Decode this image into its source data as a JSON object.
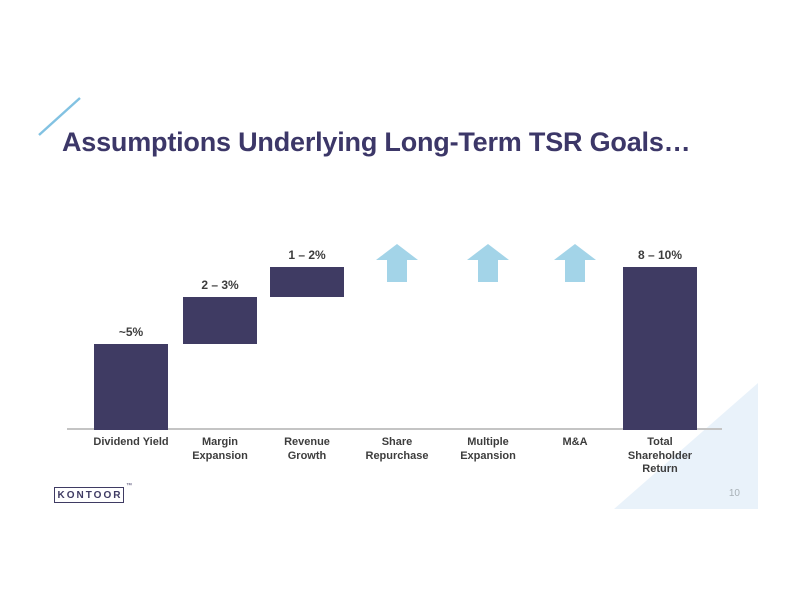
{
  "slide": {
    "title": "Assumptions Underlying Long-Term TSR Goals…",
    "page_number": "10",
    "logo_text": "KONTOOR",
    "logo_tm": "™"
  },
  "colors": {
    "bar": "#3f3b63",
    "arrow": "#a3d4e8",
    "accent_line": "#82c2e2",
    "corner_triangle": "#e9f2fa",
    "axis": "#c4c4c4",
    "label": "#3d3d3d",
    "title": "#3c3768",
    "page_number": "#a8b0b6"
  },
  "chart_data": {
    "type": "bar",
    "subtype": "waterfall",
    "title": "",
    "xlabel": "",
    "ylabel": "",
    "ylim": [
      0,
      11
    ],
    "grid": false,
    "legend": false,
    "categories": [
      "Dividend Yield",
      "Margin Expansion",
      "Revenue Growth",
      "Share Repurchase",
      "Multiple Expansion",
      "M&A",
      "Total Shareholder Return"
    ],
    "steps": [
      {
        "category": "Dividend Yield",
        "kind": "bar",
        "label": "~5%",
        "start": 0,
        "end": 5
      },
      {
        "category": "Margin Expansion",
        "kind": "bar",
        "label": "2 – 3%",
        "start": 5,
        "end": 7.75
      },
      {
        "category": "Revenue Growth",
        "kind": "bar",
        "label": "1 – 2%",
        "start": 7.75,
        "end": 9.5
      },
      {
        "category": "Share Repurchase",
        "kind": "up-arrow",
        "label": ""
      },
      {
        "category": "Multiple Expansion",
        "kind": "up-arrow",
        "label": ""
      },
      {
        "category": "M&A",
        "kind": "up-arrow",
        "label": ""
      },
      {
        "category": "Total Shareholder Return",
        "kind": "bar",
        "label": "8 – 10%",
        "start": 0,
        "end": 9.5
      }
    ]
  }
}
